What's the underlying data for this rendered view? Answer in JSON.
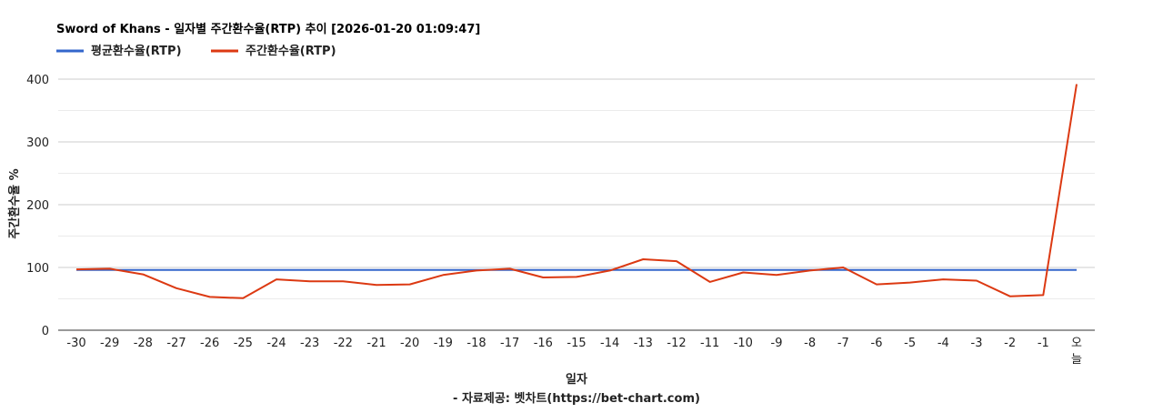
{
  "chart_data": {
    "type": "line",
    "title": "Sword of Khans - 일자별 주간환수율(RTP) 추이 [2026-01-20 01:09:47]",
    "xlabel": "일자",
    "ylabel": "주간환수율 %",
    "credit": "- 자료제공: 벳차트(https://bet-chart.com)",
    "categories": [
      "-30",
      "-29",
      "-28",
      "-27",
      "-26",
      "-25",
      "-24",
      "-23",
      "-22",
      "-21",
      "-20",
      "-19",
      "-18",
      "-17",
      "-16",
      "-15",
      "-14",
      "-13",
      "-12",
      "-11",
      "-10",
      "-9",
      "-8",
      "-7",
      "-6",
      "-5",
      "-4",
      "-3",
      "-2",
      "-1",
      "오늘"
    ],
    "yticks": [
      "0",
      "100",
      "200",
      "300",
      "400"
    ],
    "ylim": [
      0,
      400
    ],
    "grid": true,
    "legend_position": "top-left",
    "series": [
      {
        "name": "평균환수율(RTP)",
        "color": "#3366cc",
        "values": [
          96,
          96,
          96,
          96,
          96,
          96,
          96,
          96,
          96,
          96,
          96,
          96,
          96,
          96,
          96,
          96,
          96,
          96,
          96,
          96,
          96,
          96,
          96,
          96,
          96,
          96,
          96,
          96,
          96,
          96,
          96
        ]
      },
      {
        "name": "주간환수율(RTP)",
        "color": "#dc3912",
        "values": [
          97,
          98,
          89,
          67,
          53,
          51,
          81,
          78,
          78,
          72,
          73,
          88,
          95,
          98,
          84,
          85,
          95,
          113,
          110,
          77,
          92,
          88,
          95,
          100,
          73,
          76,
          81,
          79,
          54,
          56,
          392
        ]
      }
    ]
  }
}
